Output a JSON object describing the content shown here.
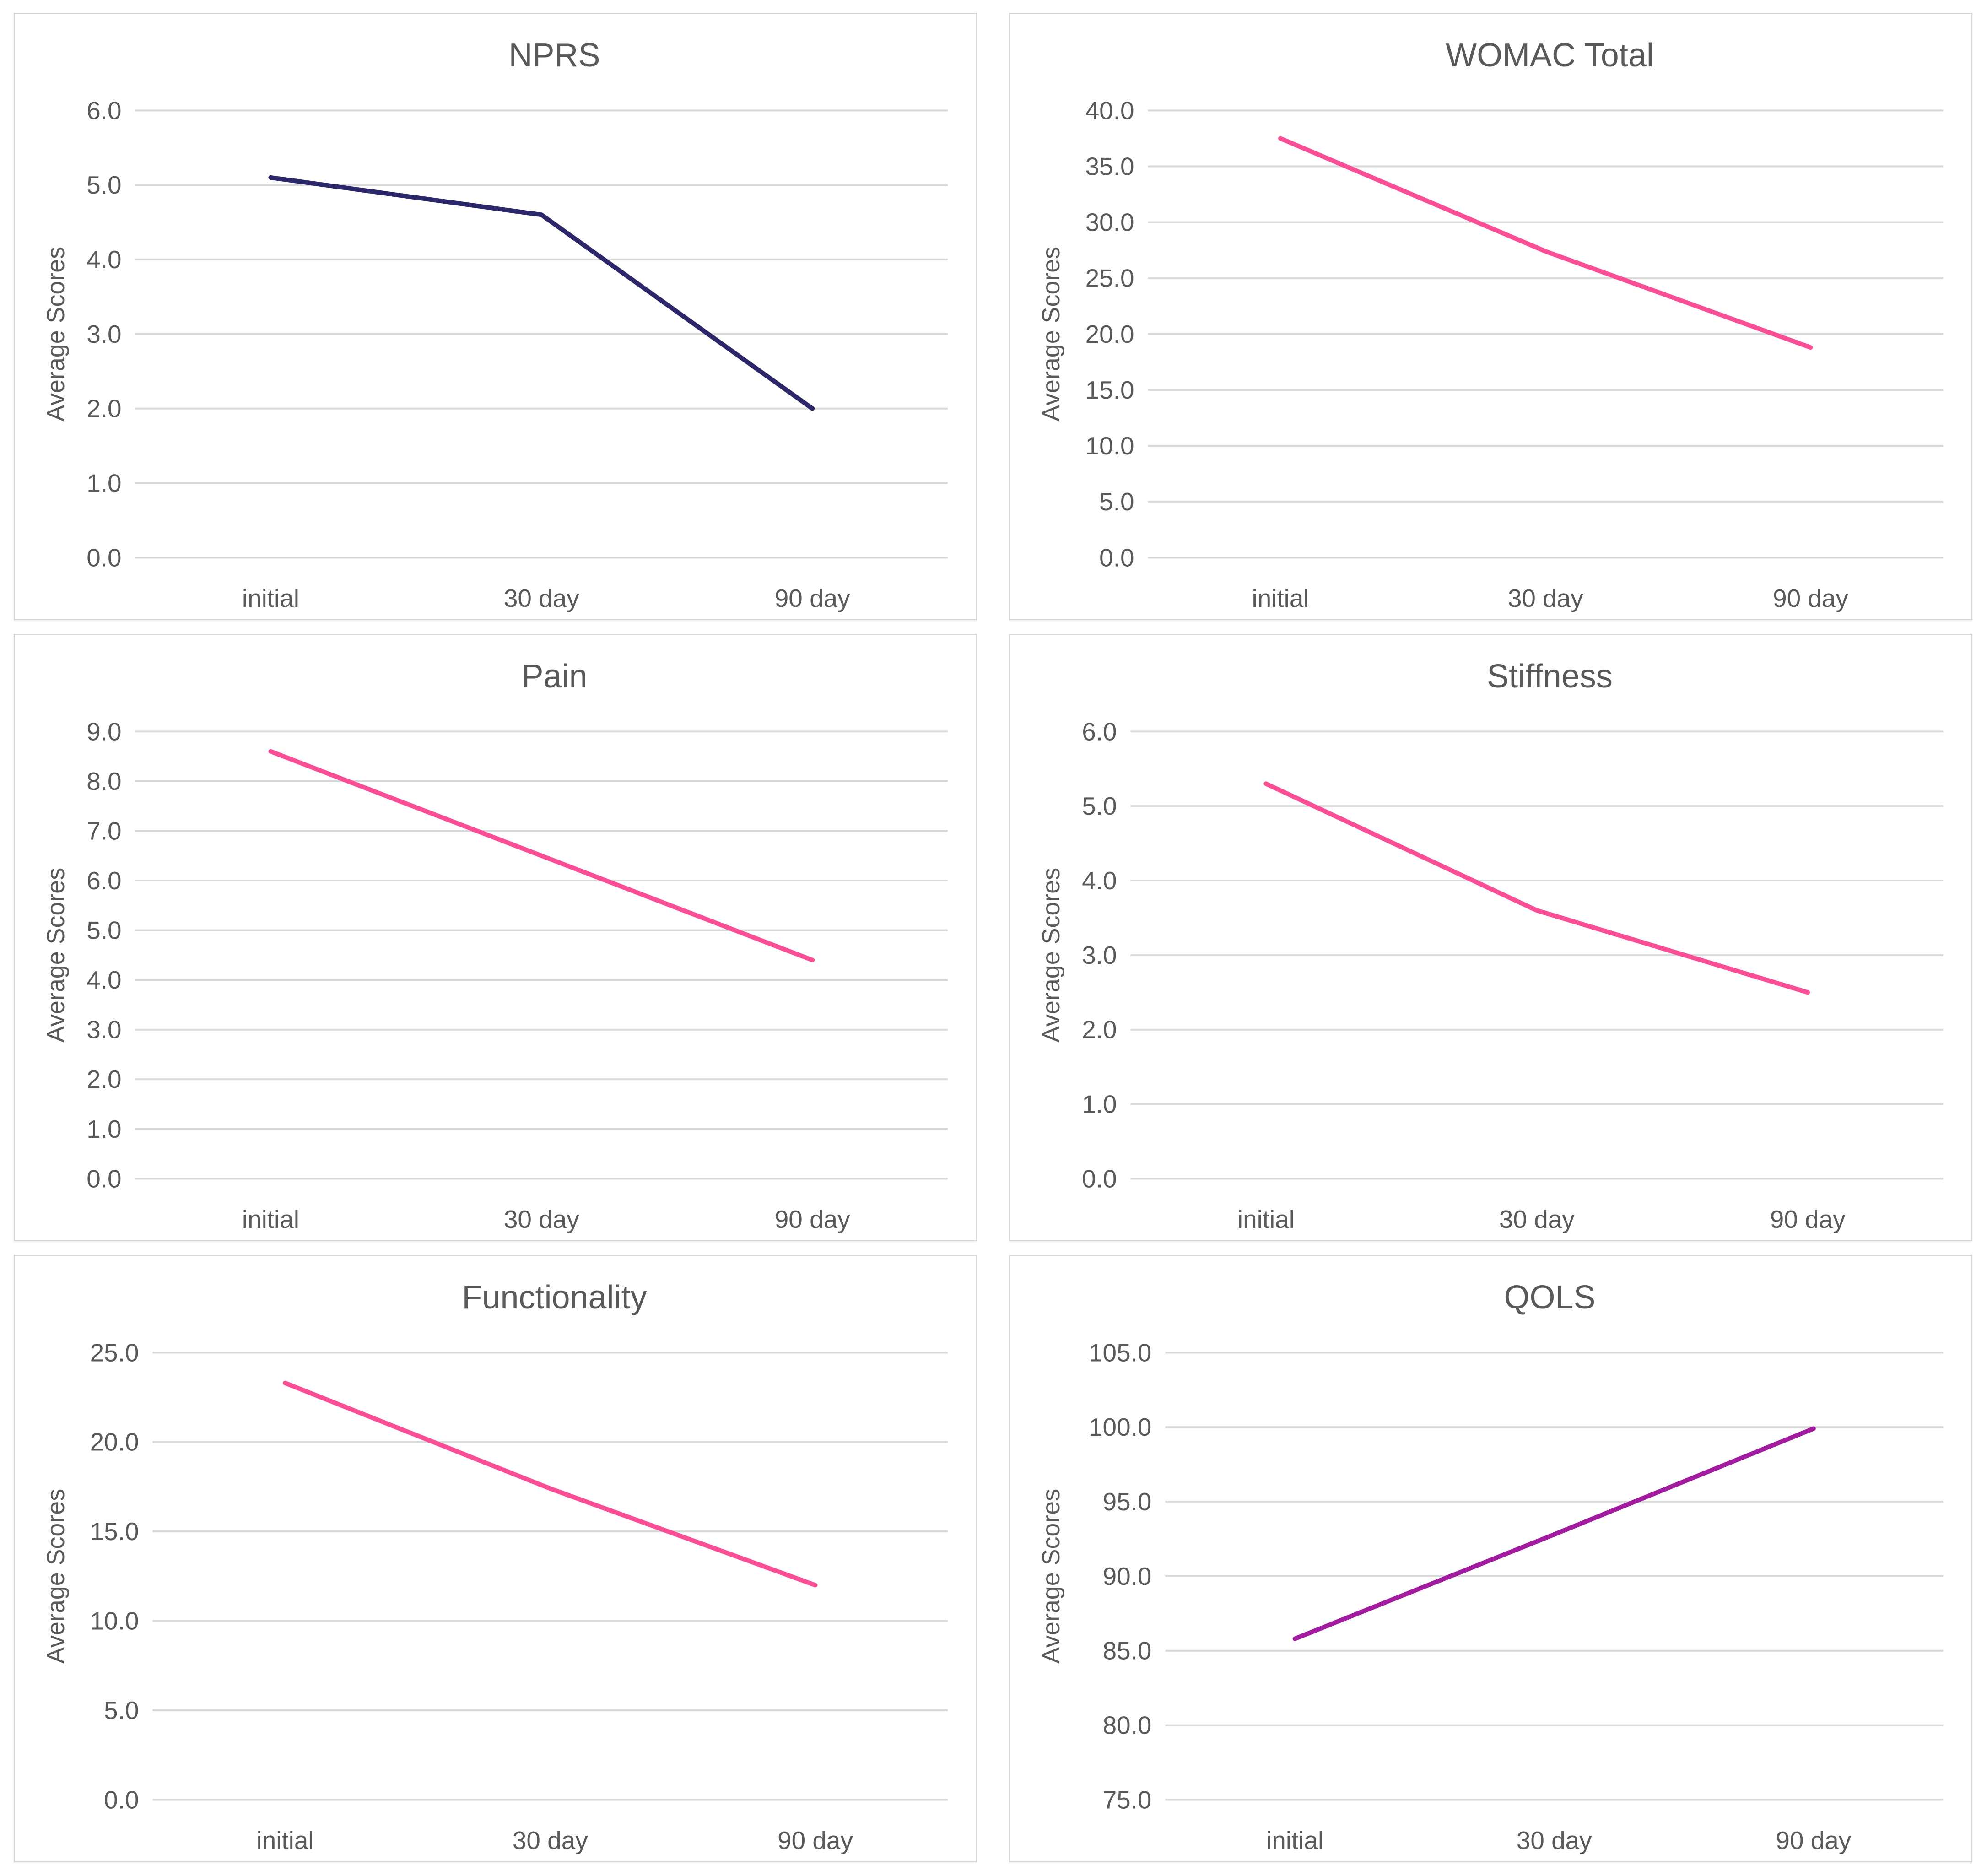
{
  "page": {
    "background": "#ffffff",
    "panel_background": "#ffffff",
    "panel_border": "#d6d6d6",
    "gridline_color": "#d9d9d9",
    "text_color": "#595959"
  },
  "chart_data": [
    {
      "type": "line",
      "title": "NPRS",
      "ylabel": "Average Scores",
      "xlabel": "",
      "categories": [
        "initial",
        "30 day",
        "90 day"
      ],
      "values": [
        5.1,
        4.6,
        2.0
      ],
      "ylim": [
        0.0,
        6.0
      ],
      "ystep": 1.0,
      "tick_decimals": 1,
      "line_color": "#2b2768",
      "grid": true,
      "legend": false
    },
    {
      "type": "line",
      "title": "WOMAC Total",
      "ylabel": "Average Scores",
      "xlabel": "",
      "categories": [
        "initial",
        "30 day",
        "90 day"
      ],
      "values": [
        37.5,
        27.4,
        18.8
      ],
      "ylim": [
        0.0,
        40.0
      ],
      "ystep": 5.0,
      "tick_decimals": 1,
      "line_color": "#fa4f96",
      "grid": true,
      "legend": false
    },
    {
      "type": "line",
      "title": "Pain",
      "ylabel": "Average Scores",
      "xlabel": "",
      "categories": [
        "initial",
        "30 day",
        "90 day"
      ],
      "values": [
        8.6,
        6.5,
        4.4
      ],
      "ylim": [
        0.0,
        9.0
      ],
      "ystep": 1.0,
      "tick_decimals": 1,
      "line_color": "#fa4f96",
      "grid": true,
      "legend": false
    },
    {
      "type": "line",
      "title": "Stiffness",
      "ylabel": "Average Scores",
      "xlabel": "",
      "categories": [
        "initial",
        "30 day",
        "90 day"
      ],
      "values": [
        5.3,
        3.6,
        2.5
      ],
      "ylim": [
        0.0,
        6.0
      ],
      "ystep": 1.0,
      "tick_decimals": 1,
      "line_color": "#fa4f96",
      "grid": true,
      "legend": false
    },
    {
      "type": "line",
      "title": "Functionality",
      "ylabel": "Average Scores",
      "xlabel": "",
      "categories": [
        "initial",
        "30 day",
        "90 day"
      ],
      "values": [
        23.3,
        17.4,
        12.0
      ],
      "ylim": [
        0.0,
        25.0
      ],
      "ystep": 5.0,
      "tick_decimals": 1,
      "line_color": "#fa4f96",
      "grid": true,
      "legend": false
    },
    {
      "type": "line",
      "title": "QOLS",
      "ylabel": "Average Scores",
      "xlabel": "",
      "categories": [
        "initial",
        "30 day",
        "90 day"
      ],
      "values": [
        85.8,
        92.8,
        99.9
      ],
      "ylim": [
        75.0,
        105.0
      ],
      "ystep": 5.0,
      "tick_decimals": 1,
      "line_color": "#a21ca0",
      "grid": true,
      "legend": false
    }
  ]
}
